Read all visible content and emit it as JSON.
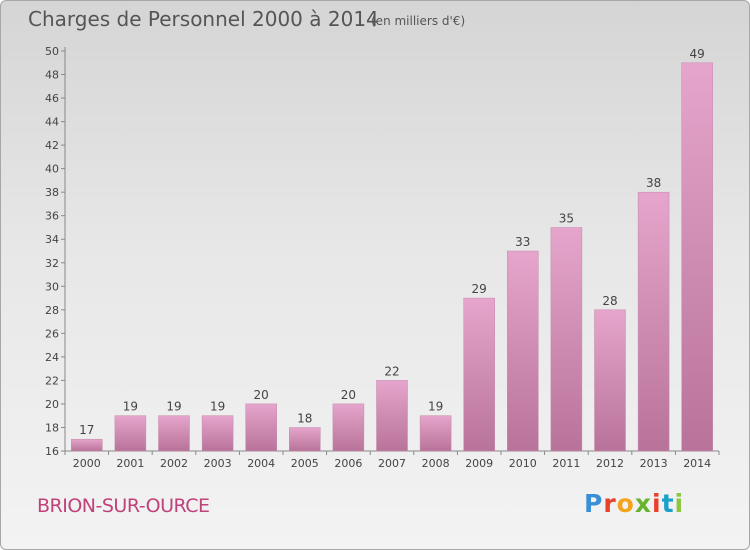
{
  "header": {
    "title": "Charges de Personnel 2000 à 2014",
    "subtitle": "(en milliers d'€)"
  },
  "footer": {
    "commune": "BRION-SUR-OURCE",
    "brand": "Proxiti",
    "brand_colors": [
      "#3a8fd6",
      "#e8412b",
      "#f5a31a",
      "#66b32e",
      "#e8412b",
      "#1aa0c9",
      "#8cc63f"
    ]
  },
  "chart_data": {
    "type": "bar",
    "title": "Charges de Personnel 2000 à 2014",
    "subtitle": "(en milliers d'€)",
    "xlabel": "",
    "ylabel": "",
    "ylim": [
      16,
      50
    ],
    "ytick_step": 2,
    "grid": false,
    "categories": [
      "2000",
      "2001",
      "2002",
      "2003",
      "2004",
      "2005",
      "2006",
      "2007",
      "2008",
      "2009",
      "2010",
      "2011",
      "2012",
      "2013",
      "2014"
    ],
    "values": [
      17,
      19,
      19,
      19,
      20,
      18,
      20,
      22,
      19,
      29,
      33,
      35,
      28,
      38,
      49
    ],
    "bar_color_top": "#e6a5cc",
    "bar_color_bottom": "#b8739a"
  }
}
